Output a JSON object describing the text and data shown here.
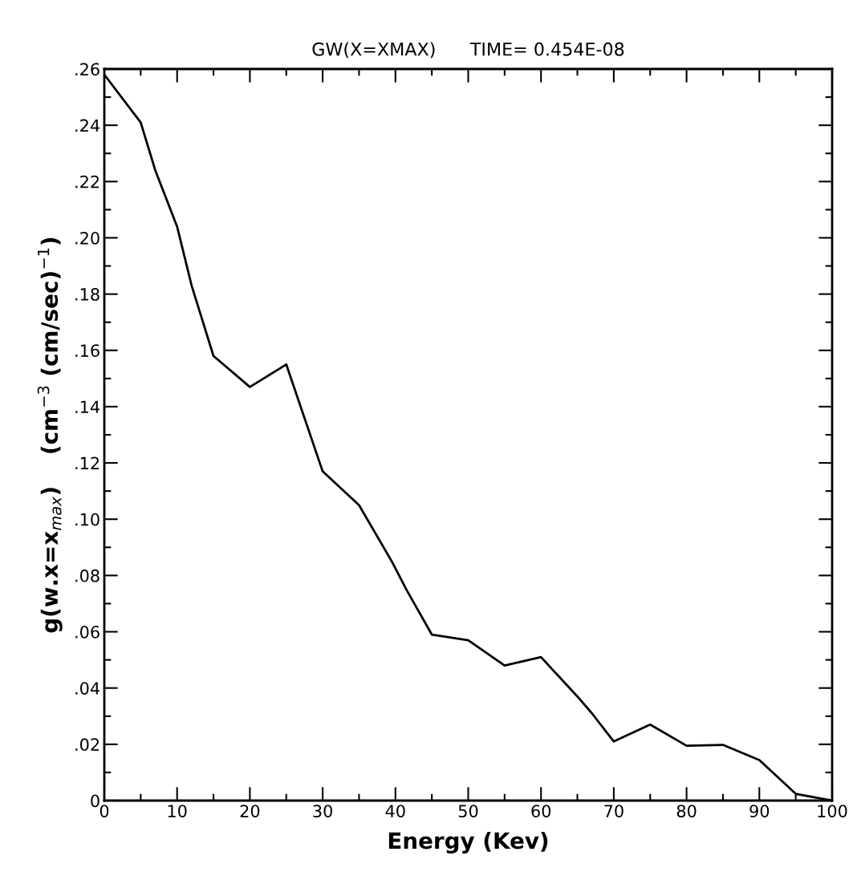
{
  "chart_data": {
    "type": "line",
    "title": "GW(X=XMAX)      TIME= 0.454E-08",
    "xlabel": "Energy (Kev)",
    "ylabel": "g(w.x=x$_{max}$)    (cm$^{−3}$ (cm/sec)$^{−1}$)",
    "x": [
      0,
      5,
      7,
      10,
      12,
      15,
      20,
      25,
      30,
      35,
      39.5,
      41.5,
      45,
      50,
      55,
      60,
      65,
      67,
      70,
      75,
      80,
      85,
      90,
      95,
      100
    ],
    "series": [
      {
        "color": "#000000",
        "values": [
          0.258,
          0.241,
          0.224,
          0.204,
          0.183,
          0.158,
          0.147,
          0.155,
          0.117,
          0.105,
          0.085,
          0.075,
          0.059,
          0.057,
          0.048,
          0.051,
          0.037,
          0.031,
          0.021,
          0.027,
          0.0195,
          0.0198,
          0.0144,
          0.0024,
          0
        ]
      }
    ],
    "xlim": [
      0,
      100
    ],
    "ylim": [
      0,
      0.26
    ],
    "xticks": [
      0,
      {
        "value": 5,
        "label": null
      },
      10,
      {
        "value": 15,
        "label": null
      },
      20,
      {
        "value": 25,
        "label": null
      },
      30,
      {
        "value": 35,
        "label": null
      },
      40,
      {
        "value": 45,
        "label": null
      },
      50,
      {
        "value": 55,
        "label": null
      },
      60,
      {
        "value": 65,
        "label": null
      },
      70,
      {
        "value": 75,
        "label": null
      },
      80,
      {
        "value": 85,
        "label": null
      },
      90,
      {
        "value": 95,
        "label": null
      },
      100
    ],
    "yticks": [
      0,
      {
        "value": 0.01,
        "label": null
      },
      {
        "value": 0.02,
        "label": ".02"
      },
      {
        "value": 0.03,
        "label": null
      },
      {
        "value": 0.04,
        "label": ".04"
      },
      {
        "value": 0.05,
        "label": null
      },
      {
        "value": 0.06,
        "label": ".06"
      },
      {
        "value": 0.07,
        "label": null
      },
      {
        "value": 0.08,
        "label": ".08"
      },
      {
        "value": 0.09,
        "label": null
      },
      {
        "value": 0.1,
        "label": ".10"
      },
      {
        "value": 0.11,
        "label": null
      },
      {
        "value": 0.12,
        "label": ".12"
      },
      {
        "value": 0.13,
        "label": null
      },
      {
        "value": 0.14,
        "label": ".14"
      },
      {
        "value": 0.15,
        "label": null
      },
      {
        "value": 0.16,
        "label": ".16"
      },
      {
        "value": 0.17,
        "label": null
      },
      {
        "value": 0.18,
        "label": ".18"
      },
      {
        "value": 0.19,
        "label": null
      },
      {
        "value": 0.2,
        "label": ".20"
      },
      {
        "value": 0.21,
        "label": null
      },
      {
        "value": 0.22,
        "label": ".22"
      },
      {
        "value": 0.23,
        "label": null
      },
      {
        "value": 0.24,
        "label": ".24"
      },
      {
        "value": 0.25,
        "label": null
      },
      {
        "value": 0.26,
        "label": ".26"
      }
    ],
    "grid": false,
    "legend": false,
    "marker": "none",
    "line_style": "solid"
  }
}
